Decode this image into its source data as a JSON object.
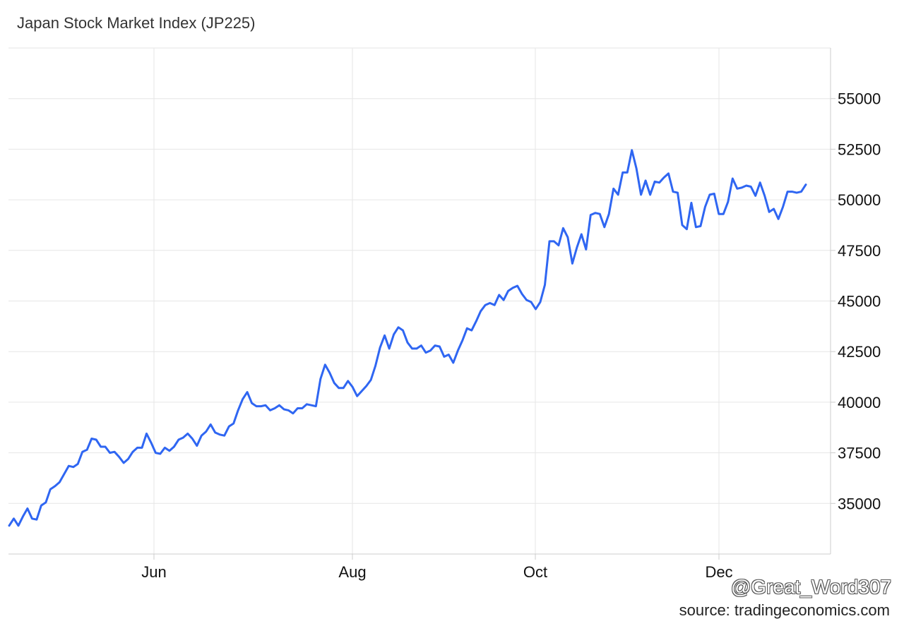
{
  "title": "Japan Stock Market Index (JP225)",
  "watermark": "@Great_Word307",
  "source": "source: tradingeconomics.com",
  "colors": {
    "line": "#2f66f2",
    "grid": "#e6e6e6",
    "axis_text": "#111111"
  },
  "chart_data": {
    "type": "line",
    "title": "Japan Stock Market Index (JP225)",
    "xlabel": "",
    "ylabel": "",
    "x_ticks": [
      "Jun",
      "Aug",
      "Oct",
      "Dec"
    ],
    "y_ticks": [
      35000,
      37500,
      40000,
      42500,
      45000,
      47500,
      50000,
      52500,
      55000
    ],
    "ylim": [
      32500,
      57500
    ],
    "grid": true,
    "y_axis_side": "right",
    "series": [
      {
        "values": [
          33900,
          34250,
          33900,
          34350,
          34750,
          34250,
          34200,
          34900,
          35050,
          35700,
          35850,
          36050,
          36450,
          36850,
          36800,
          36950,
          37550,
          37650,
          38200,
          38150,
          37800,
          37800,
          37500,
          37550,
          37300,
          37000,
          37200,
          37550,
          37750,
          37750,
          38450,
          38000,
          37500,
          37450,
          37750,
          37600,
          37800,
          38150,
          38250,
          38450,
          38200,
          37850,
          38350,
          38550,
          38900,
          38500,
          38400,
          38350,
          38800,
          38950,
          39600,
          40150,
          40500,
          39950,
          39800,
          39800,
          39850,
          39600,
          39700,
          39850,
          39650,
          39600,
          39450,
          39700,
          39700,
          39900,
          39850,
          39800,
          41150,
          41850,
          41450,
          40950,
          40700,
          40700,
          41050,
          40750,
          40300,
          40550,
          40800,
          41100,
          41800,
          42700,
          43300,
          42650,
          43350,
          43700,
          43550,
          42950,
          42650,
          42650,
          42800,
          42450,
          42550,
          42800,
          42750,
          42250,
          42350,
          41950,
          42550,
          43050,
          43650,
          43550,
          44000,
          44500,
          44800,
          44900,
          44800,
          45300,
          45050,
          45500,
          45650,
          45750,
          45350,
          45050,
          44950,
          44600,
          44950,
          45800,
          47950,
          47950,
          47750,
          48600,
          48150,
          46850,
          47650,
          48300,
          47550,
          49250,
          49350,
          49300,
          48650,
          49300,
          50550,
          50250,
          51350,
          51350,
          52450,
          51550,
          50250,
          50950,
          50250,
          50900,
          50850,
          51100,
          51300,
          50400,
          50350,
          48750,
          48550,
          49850,
          48650,
          48700,
          49650,
          50250,
          50300,
          49300,
          49300,
          49900,
          51050,
          50550,
          50600,
          50700,
          50650,
          50200,
          50850,
          50200,
          49400,
          49550,
          49050,
          49650,
          50400,
          50400,
          50350,
          50400,
          50750
        ]
      }
    ]
  }
}
